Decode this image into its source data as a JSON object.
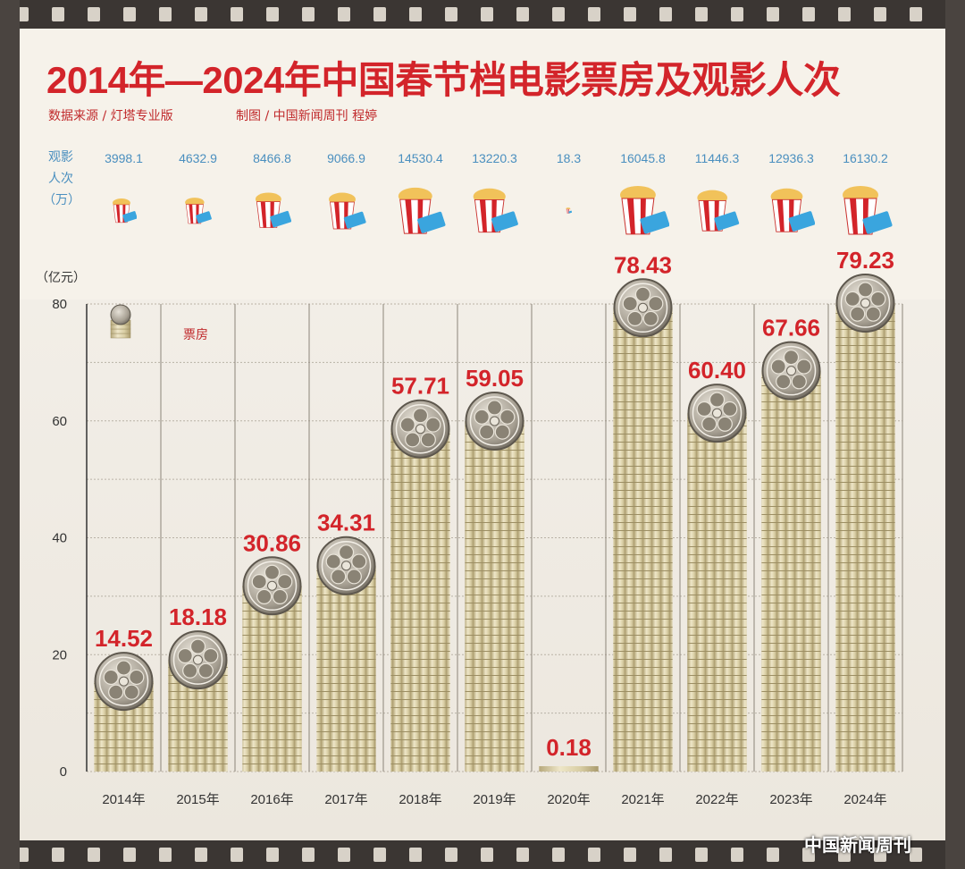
{
  "header": {
    "title": "2014年—2024年中国春节档电影票房及观影人次",
    "source": "数据来源 / 灯塔专业版",
    "credit": "制图 / 中国新闻周刊    程婷"
  },
  "audience": {
    "label": "观影人次（万）",
    "label_lines": [
      "观影",
      "人次",
      "（万）"
    ],
    "values_text": [
      "3998.1",
      "4632.9",
      "8466.8",
      "9066.9",
      "14530.4",
      "13220.3",
      "18.3",
      "16045.8",
      "11446.3",
      "12936.3",
      "16130.2"
    ],
    "values": [
      3998.1,
      4632.9,
      8466.8,
      9066.9,
      14530.4,
      13220.3,
      18.3,
      16045.8,
      11446.3,
      12936.3,
      16130.2
    ]
  },
  "chart_data": {
    "type": "bar",
    "categories": [
      "2014年",
      "2015年",
      "2016年",
      "2017年",
      "2018年",
      "2019年",
      "2020年",
      "2021年",
      "2022年",
      "2023年",
      "2024年"
    ],
    "series": [
      {
        "name": "票房",
        "values": [
          14.52,
          18.18,
          30.86,
          34.31,
          57.71,
          59.05,
          0.18,
          78.43,
          60.4,
          67.66,
          79.23
        ]
      }
    ],
    "value_labels": [
      "14.52",
      "18.18",
      "30.86",
      "34.31",
      "57.71",
      "59.05",
      "0.18",
      "78.43",
      "60.40",
      "67.66",
      "79.23"
    ],
    "ylabel": "（亿元）",
    "ylim": [
      0,
      80
    ],
    "yticks": [
      0,
      20,
      40,
      60,
      80
    ],
    "ytick_labels": [
      "0",
      "20",
      "40",
      "60",
      "80"
    ],
    "grid": true,
    "legend": "top-left",
    "colors": {
      "bar": "#d9cfa8",
      "bar_shadow": "#b8aa80",
      "value_label": "#d3242a",
      "grid": "#b9b2a6"
    }
  },
  "watermark": "中国新闻周刊"
}
